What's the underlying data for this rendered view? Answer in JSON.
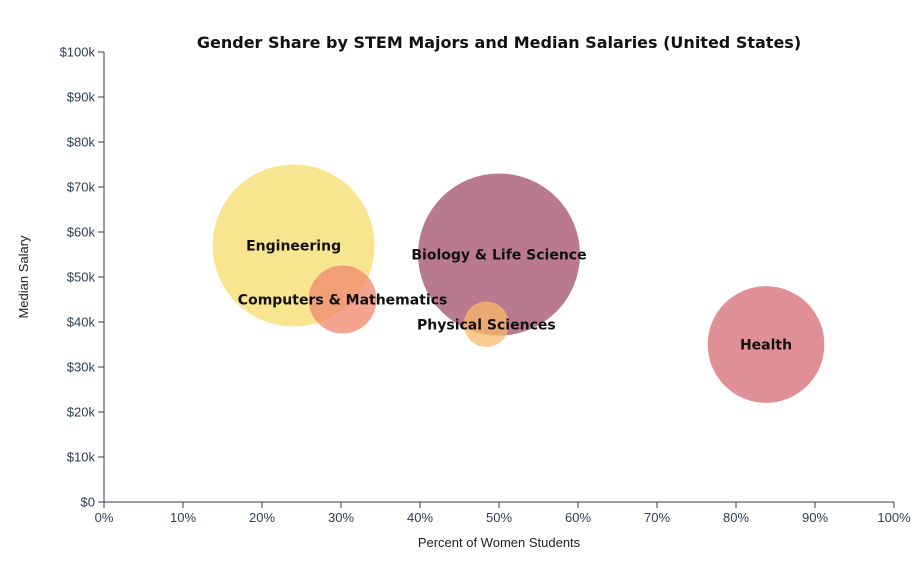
{
  "chart_data": {
    "type": "scatter",
    "title": "Gender Share by STEM Majors and Median Salaries (United States)",
    "xlabel": "Percent of Women Students",
    "ylabel": "Median Salary",
    "xlim": [
      0,
      100
    ],
    "ylim": [
      0,
      100000
    ],
    "x_ticks": [
      "0%",
      "10%",
      "20%",
      "30%",
      "40%",
      "50%",
      "60%",
      "70%",
      "80%",
      "90%",
      "100%"
    ],
    "y_ticks": [
      "$0",
      "$10k",
      "$20k",
      "$30k",
      "$40k",
      "$50k",
      "$60k",
      "$70k",
      "$80k",
      "$90k",
      "$100k"
    ],
    "grid": false,
    "points": [
      {
        "label": "Engineering",
        "x": 24,
        "y": 57000,
        "size": 1.0,
        "color": "#f5dc6a"
      },
      {
        "label": "Biology & Life Science",
        "x": 50,
        "y": 55000,
        "size": 1.0,
        "color": "#a24d6c"
      },
      {
        "label": "Health",
        "x": 83.8,
        "y": 35000,
        "size": 0.72,
        "color": "#d46a72"
      },
      {
        "label": "Computers & Mathematics",
        "x": 30.2,
        "y": 45000,
        "size": 0.42,
        "color": "#f0876c"
      },
      {
        "label": "Physical Sciences",
        "x": 48.4,
        "y": 39500,
        "size": 0.28,
        "color": "#fbb96a"
      }
    ]
  }
}
